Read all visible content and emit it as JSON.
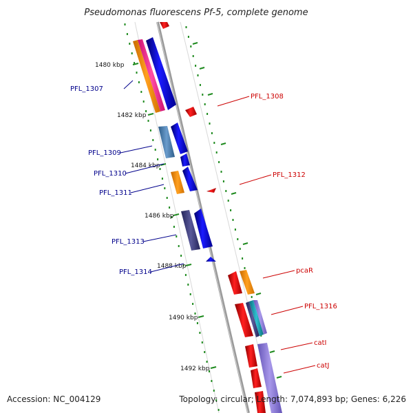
{
  "header": {
    "title": "Pseudomonas fluorescens Pf-5, complete genome"
  },
  "footer": {
    "accession": "Accession: NC_004129",
    "summary": "Topology: circular; Length: 7,074,893 bp; Genes: 6,226"
  },
  "axis_ticks": [
    "1480 kbp",
    "1482 kbp",
    "1484 kbp",
    "1486 kbp",
    "1488 kbp",
    "1490 kbp",
    "1492 kbp"
  ],
  "genes_left": [
    "PFL_1307",
    "PFL_1309",
    "PFL_1310",
    "PFL_1311",
    "PFL_1313",
    "PFL_1314"
  ],
  "genes_right": [
    "PFL_1308",
    "PFL_1312",
    "pcaR",
    "PFL_1316",
    "catI",
    "catJ"
  ],
  "colors": {
    "backbone": "#8c8c8c",
    "forward_cds": "#0000ee",
    "reverse_cds": "#ee0000",
    "gc_skew_ticks": "#1e8a1e",
    "left_label": "#00008b",
    "right_label": "#cc0000",
    "feature_orange": "#ff9900",
    "feature_pink": "#ff3399",
    "feature_steel": "#4a7fb0",
    "feature_navy": "#3c3c7c",
    "feature_teal": "#20a0b0",
    "feature_lavender": "#8a7ad0"
  }
}
